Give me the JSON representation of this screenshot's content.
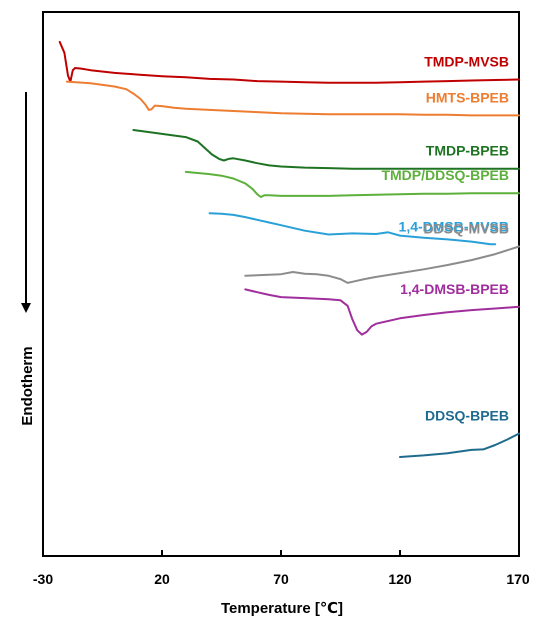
{
  "chart_data": {
    "type": "line",
    "xlabel": "Temperature [℃]",
    "ylabel": "Endotherm",
    "xlim": [
      -30,
      170
    ],
    "xticks": [
      -30,
      20,
      70,
      120,
      170
    ],
    "xtick_labels": [
      "-30",
      "20",
      "70",
      "120",
      "170"
    ],
    "y_ticks_shown": false,
    "y_direction_arrow": "down",
    "grid": false,
    "legend": "inline labels above each curve",
    "series": [
      {
        "name": "TMDP-MVSB",
        "color": "#c00000",
        "x": [
          -23,
          -21,
          -19.5,
          -18.5,
          -17.5,
          -16.5,
          -14,
          -10,
          0,
          10,
          20,
          30,
          40,
          50,
          60,
          70,
          80,
          90,
          100,
          110,
          120,
          130,
          140,
          150,
          160,
          170
        ],
        "y": [
          9.45,
          9.25,
          8.83,
          8.72,
          8.93,
          8.97,
          8.96,
          8.93,
          8.88,
          8.85,
          8.82,
          8.8,
          8.77,
          8.76,
          8.73,
          8.72,
          8.71,
          8.7,
          8.7,
          8.7,
          8.71,
          8.72,
          8.73,
          8.74,
          8.75,
          8.76
        ]
      },
      {
        "name": "HMTS-BPEB",
        "color": "#ed7d31",
        "x": [
          -20,
          -10,
          0,
          5,
          8,
          11,
          13,
          14.5,
          15.5,
          17,
          20,
          25,
          30,
          40,
          50,
          60,
          70,
          80,
          90,
          100,
          110,
          120,
          130,
          140,
          150,
          160,
          170
        ],
        "y": [
          8.72,
          8.69,
          8.63,
          8.58,
          8.5,
          8.4,
          8.3,
          8.2,
          8.21,
          8.28,
          8.27,
          8.24,
          8.22,
          8.2,
          8.18,
          8.16,
          8.14,
          8.13,
          8.12,
          8.12,
          8.12,
          8.12,
          8.11,
          8.11,
          8.1,
          8.1,
          8.1
        ]
      },
      {
        "name": "TMDP-BPEB",
        "color": "#1e7323",
        "x": [
          8,
          15,
          20,
          25,
          30,
          35,
          38,
          41,
          44,
          46,
          48,
          50,
          55,
          60,
          65,
          70,
          80,
          90,
          100,
          110,
          120,
          130,
          140,
          150,
          160,
          170
        ],
        "y": [
          7.83,
          7.79,
          7.76,
          7.73,
          7.7,
          7.62,
          7.5,
          7.38,
          7.3,
          7.27,
          7.3,
          7.31,
          7.27,
          7.22,
          7.18,
          7.16,
          7.14,
          7.13,
          7.12,
          7.12,
          7.12,
          7.12,
          7.12,
          7.12,
          7.12,
          7.12
        ]
      },
      {
        "name": "TMDP/DDSQ-BPEB",
        "color": "#5eb03c",
        "x": [
          30,
          35,
          40,
          45,
          50,
          55,
          58,
          60,
          61.5,
          63,
          65,
          70,
          80,
          90,
          100,
          110,
          120,
          130,
          140,
          150,
          160,
          170
        ],
        "y": [
          7.06,
          7.04,
          7.02,
          6.99,
          6.94,
          6.85,
          6.75,
          6.65,
          6.6,
          6.63,
          6.63,
          6.62,
          6.62,
          6.62,
          6.63,
          6.64,
          6.65,
          6.66,
          6.66,
          6.67,
          6.67,
          6.67
        ]
      },
      {
        "name": "1,4-DMSB-MVSB",
        "color": "#29a0d8",
        "x": [
          40,
          45,
          50,
          55,
          60,
          65,
          70,
          80,
          90,
          100,
          110,
          115,
          120,
          130,
          140,
          150,
          155,
          158,
          160
        ],
        "y": [
          6.3,
          6.29,
          6.27,
          6.23,
          6.18,
          6.13,
          6.08,
          5.98,
          5.91,
          5.93,
          5.92,
          5.95,
          5.89,
          5.85,
          5.82,
          5.78,
          5.75,
          5.73,
          5.73
        ]
      },
      {
        "name": "DDSQ-MVSB",
        "color": "#8c8c8c",
        "x": [
          55,
          60,
          65,
          70,
          75,
          80,
          85,
          90,
          95,
          98,
          100,
          105,
          110,
          120,
          130,
          140,
          150,
          160,
          170
        ],
        "y": [
          5.15,
          5.16,
          5.17,
          5.18,
          5.22,
          5.19,
          5.18,
          5.15,
          5.09,
          5.02,
          5.04,
          5.09,
          5.13,
          5.2,
          5.27,
          5.35,
          5.44,
          5.55,
          5.69
        ]
      },
      {
        "name": "1,4-DMSB-BPEB",
        "color": "#a02e9c",
        "x": [
          55,
          60,
          65,
          70,
          80,
          90,
          95,
          98,
          100,
          102,
          104,
          106,
          108,
          110,
          120,
          130,
          140,
          150,
          160,
          170
        ],
        "y": [
          4.9,
          4.85,
          4.8,
          4.76,
          4.74,
          4.72,
          4.7,
          4.6,
          4.35,
          4.15,
          4.07,
          4.12,
          4.22,
          4.27,
          4.37,
          4.43,
          4.48,
          4.52,
          4.55,
          4.58
        ]
      },
      {
        "name": "DDSQ-BPEB",
        "color": "#1f6b8e",
        "x": [
          120,
          130,
          140,
          150,
          155,
          160,
          165,
          170
        ],
        "y": [
          1.82,
          1.85,
          1.89,
          1.95,
          1.96,
          2.04,
          2.14,
          2.25
        ]
      }
    ]
  }
}
